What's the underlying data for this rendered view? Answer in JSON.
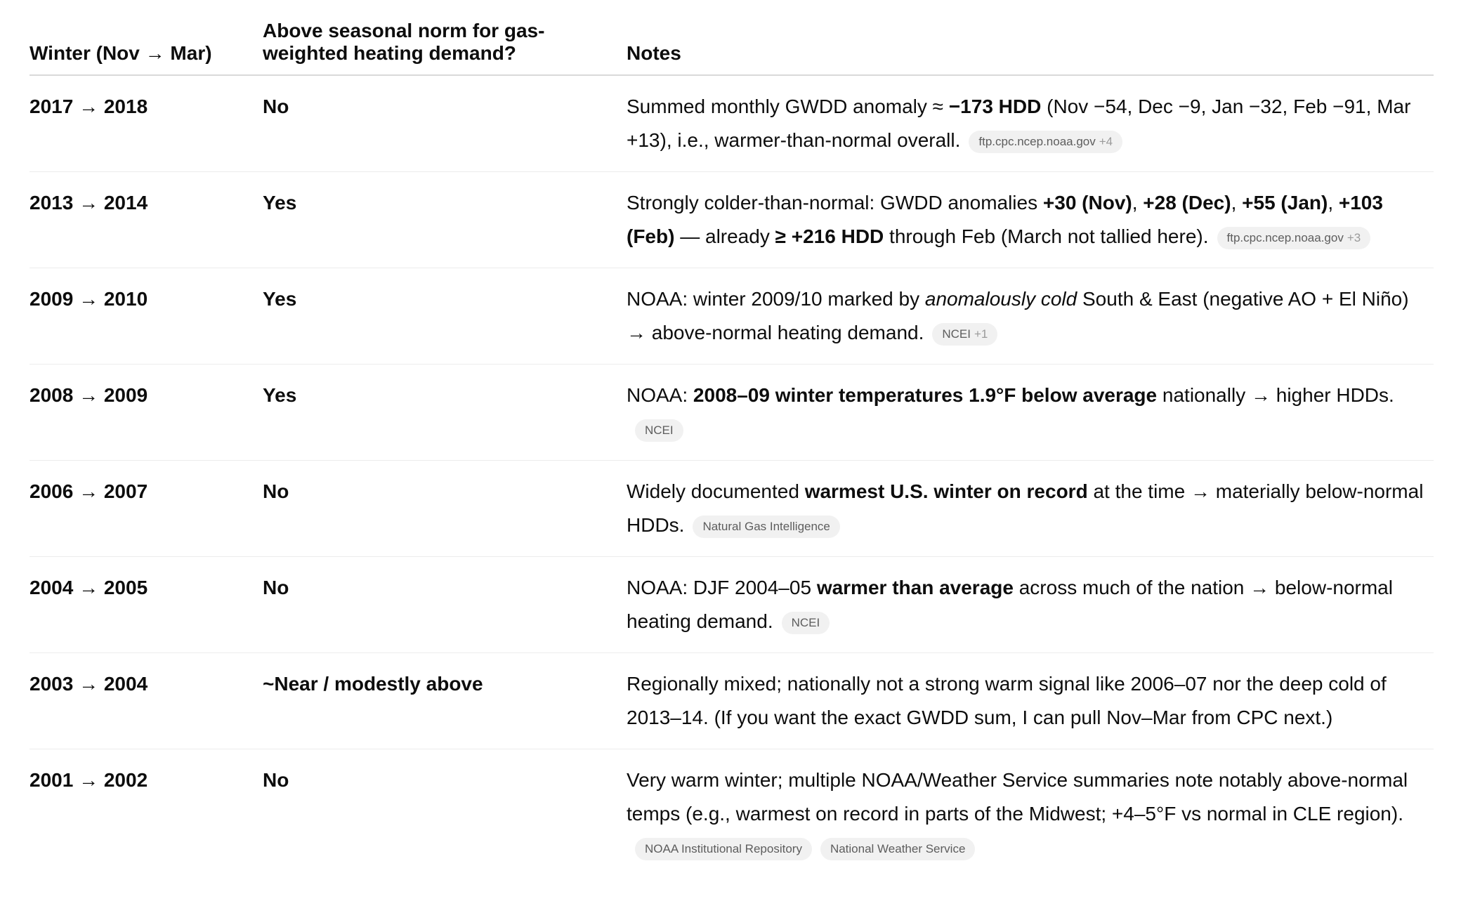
{
  "table": {
    "headers": [
      "Winter (Nov → Mar)",
      "Above seasonal norm for gas-weighted heating demand?",
      "Notes"
    ],
    "rows": [
      {
        "winter": "2017 → 2018",
        "answer": "No",
        "notes": [
          {
            "t": "Summed monthly GWDD anomaly ≈ "
          },
          {
            "t": "−173 HDD",
            "s": "b"
          },
          {
            "t": " (Nov −54, Dec −9, Jan −32, Feb −91, Mar +13), i.e., warmer-than-normal overall."
          }
        ],
        "sources": [
          {
            "name": "ftp.cpc.ncep.noaa.gov",
            "more": "+4"
          }
        ]
      },
      {
        "winter": "2013 → 2014",
        "answer": "Yes",
        "notes": [
          {
            "t": "Strongly colder-than-normal: GWDD anomalies "
          },
          {
            "t": "+30 (Nov)",
            "s": "b"
          },
          {
            "t": ", "
          },
          {
            "t": "+28 (Dec)",
            "s": "b"
          },
          {
            "t": ", "
          },
          {
            "t": "+55 (Jan)",
            "s": "b"
          },
          {
            "t": ", "
          },
          {
            "t": "+103 (Feb)",
            "s": "b"
          },
          {
            "t": " — already "
          },
          {
            "t": "≥ +216 HDD",
            "s": "b"
          },
          {
            "t": " through Feb (March not tallied here)."
          }
        ],
        "sources": [
          {
            "name": "ftp.cpc.ncep.noaa.gov",
            "more": "+3"
          }
        ]
      },
      {
        "winter": "2009 → 2010",
        "answer": "Yes",
        "notes": [
          {
            "t": "NOAA: winter 2009/10 marked by "
          },
          {
            "t": "anomalously cold",
            "s": "i"
          },
          {
            "t": " South & East (negative AO + El Niño) → above-normal heating demand."
          }
        ],
        "sources": [
          {
            "name": "NCEI",
            "more": "+1"
          }
        ]
      },
      {
        "winter": "2008 → 2009",
        "answer": "Yes",
        "notes": [
          {
            "t": "NOAA: "
          },
          {
            "t": "2008–09 winter temperatures 1.9°F below average",
            "s": "b"
          },
          {
            "t": " nationally → higher HDDs."
          }
        ],
        "sources": [
          {
            "name": "NCEI"
          }
        ]
      },
      {
        "winter": "2006 → 2007",
        "answer": "No",
        "notes": [
          {
            "t": "Widely documented "
          },
          {
            "t": "warmest U.S. winter on record",
            "s": "b"
          },
          {
            "t": " at the time → materially below-normal HDDs."
          }
        ],
        "sources": [
          {
            "name": "Natural Gas Intelligence"
          }
        ]
      },
      {
        "winter": "2004 → 2005",
        "answer": "No",
        "notes": [
          {
            "t": "NOAA: DJF 2004–05 "
          },
          {
            "t": "warmer than average",
            "s": "b"
          },
          {
            "t": " across much of the nation → below-normal heating demand."
          }
        ],
        "sources": [
          {
            "name": "NCEI"
          }
        ]
      },
      {
        "winter": "2003 → 2004",
        "answer": "~Near / modestly above",
        "notes": [
          {
            "t": "Regionally mixed; nationally not a strong warm signal like 2006–07 nor the deep cold of 2013–14. (If you want the exact GWDD sum, I can pull Nov–Mar from CPC next.)"
          }
        ],
        "sources": []
      },
      {
        "winter": "2001 → 2002",
        "answer": "No",
        "notes": [
          {
            "t": "Very warm winter; multiple NOAA/Weather Service summaries note notably above-normal temps (e.g., warmest on record in parts of the Midwest; +4–5°F vs normal in CLE region)."
          }
        ],
        "sources": [
          {
            "name": "NOAA Institutional Repository"
          },
          {
            "name": "National Weather Service"
          }
        ]
      }
    ]
  }
}
